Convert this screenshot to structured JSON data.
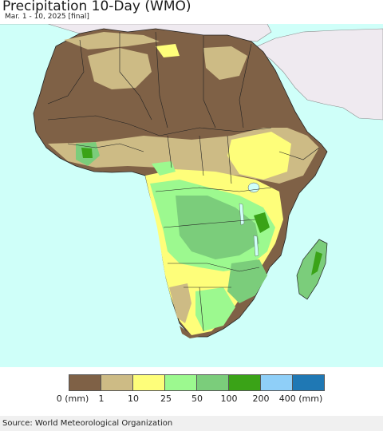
{
  "title": "Precipitation 10-Day (WMO)",
  "subtitle": "Mar. 1 - 10, 2025 [final]",
  "legend": {
    "colors": [
      "#7f6146",
      "#cdbb85",
      "#fefe7a",
      "#9cf98f",
      "#7bcd7b",
      "#3aa317",
      "#8fcff8",
      "#1f78b4"
    ],
    "ticks": [
      "0 (mm)",
      "1",
      "10",
      "25",
      "50",
      "100",
      "200",
      "400 (mm)"
    ]
  },
  "map": {
    "ocean_color": "#cffff9",
    "outside_land_color": "#efeaf0"
  },
  "source": "Source: World Meteorological Organization"
}
